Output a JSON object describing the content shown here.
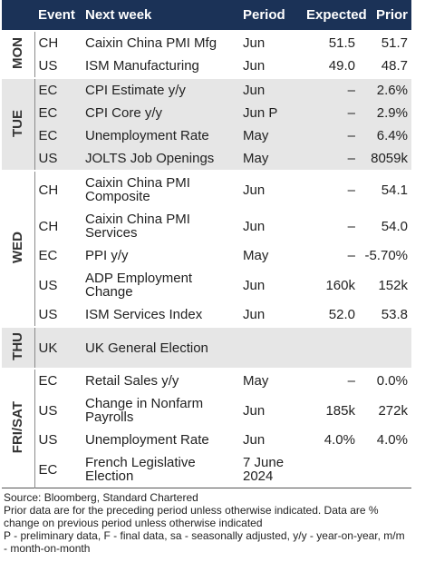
{
  "header": [
    "Event",
    "Next week",
    "Period",
    "Expected",
    "Prior"
  ],
  "groups": [
    {
      "day": "MON",
      "rows": [
        [
          "CH",
          "Caixin China PMI Mfg",
          "Jun",
          "51.5",
          "51.7"
        ],
        [
          "US",
          "ISM Manufacturing",
          "Jun",
          "49.0",
          "48.7"
        ]
      ]
    },
    {
      "day": "TUE",
      "rows": [
        [
          "EC",
          "CPI Estimate y/y",
          "Jun",
          "–",
          "2.6%"
        ],
        [
          "EC",
          "CPI Core y/y",
          "Jun P",
          "–",
          "2.9%"
        ],
        [
          "EC",
          "Unemployment Rate",
          "May",
          "–",
          "6.4%"
        ],
        [
          "US",
          "JOLTS Job Openings",
          "May",
          "–",
          "8059k"
        ]
      ]
    },
    {
      "day": "WED",
      "rows": [
        [
          "CH",
          "Caixin China PMI Composite",
          "Jun",
          "–",
          "54.1"
        ],
        [
          "CH",
          "Caixin China PMI Services",
          "Jun",
          "–",
          "54.0"
        ],
        [
          "EC",
          "PPI y/y",
          "May",
          "–",
          "-5.70%"
        ],
        [
          "US",
          "ADP Employment Change",
          "Jun",
          "160k",
          "152k"
        ],
        [
          "US",
          "ISM Services Index",
          "Jun",
          "52.0",
          "53.8"
        ]
      ]
    },
    {
      "day": "THU",
      "rows": [
        [
          "UK",
          "UK General Election",
          "",
          "",
          ""
        ]
      ]
    },
    {
      "day": "FRI/SAT",
      "rows": [
        [
          "EC",
          "Retail Sales y/y",
          "May",
          "–",
          "0.0%"
        ],
        [
          "US",
          "Change in Nonfarm Payrolls",
          "Jun",
          "185k",
          "272k"
        ],
        [
          "US",
          "Unemployment Rate",
          "Jun",
          "4.0%",
          "4.0%"
        ],
        [
          "EC",
          "French Legislative Election",
          "7 June 2024",
          "",
          ""
        ]
      ]
    }
  ],
  "footer": [
    "Source: Bloomberg, Standard Chartered",
    "Prior data are for the preceding period unless otherwise indicated. Data are % change on previous period unless otherwise indicated",
    "P - preliminary data, F - final data, sa - seasonally adjusted, y/y - year-on-year, m/m - month-on-month"
  ]
}
